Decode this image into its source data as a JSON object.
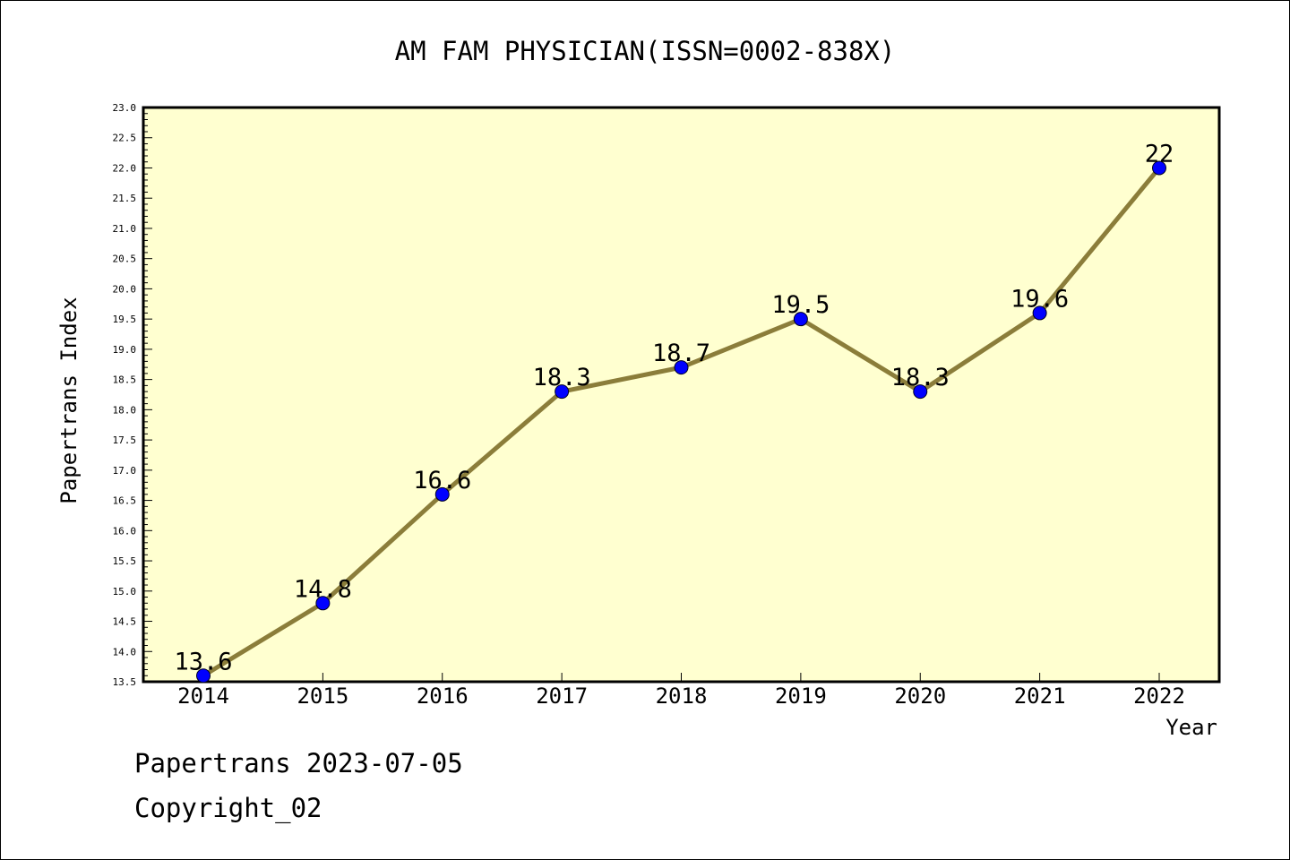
{
  "chart_data": {
    "type": "line",
    "title": "AM FAM PHYSICIAN(ISSN=0002-838X)",
    "xlabel": "Year",
    "ylabel": "Papertrans Index",
    "categories": [
      "2014",
      "2015",
      "2016",
      "2017",
      "2018",
      "2019",
      "2020",
      "2021",
      "2022"
    ],
    "values": [
      13.6,
      14.8,
      16.6,
      18.3,
      18.7,
      19.5,
      18.3,
      19.6,
      22
    ],
    "data_labels": [
      "13.6",
      "14.8",
      "16.6",
      "18.3",
      "18.7",
      "19.5",
      "18.3",
      "19.6",
      "22"
    ],
    "ylim": [
      13.5,
      23.0
    ],
    "ytick_step": 0.5,
    "yticks": [
      "13.5",
      "14.0",
      "14.5",
      "15.0",
      "15.5",
      "16.0",
      "16.5",
      "17.0",
      "17.5",
      "18.0",
      "18.5",
      "19.0",
      "19.5",
      "20.0",
      "20.5",
      "21.0",
      "21.5",
      "22.0",
      "22.5",
      "23.0"
    ],
    "grid": false,
    "colors": {
      "plot_background": "#ffffd0",
      "line": "#8b7d3a",
      "marker": "#0000ff"
    }
  },
  "footer": {
    "line1": "Papertrans 2023-07-05",
    "line2": "Copyright_02"
  }
}
